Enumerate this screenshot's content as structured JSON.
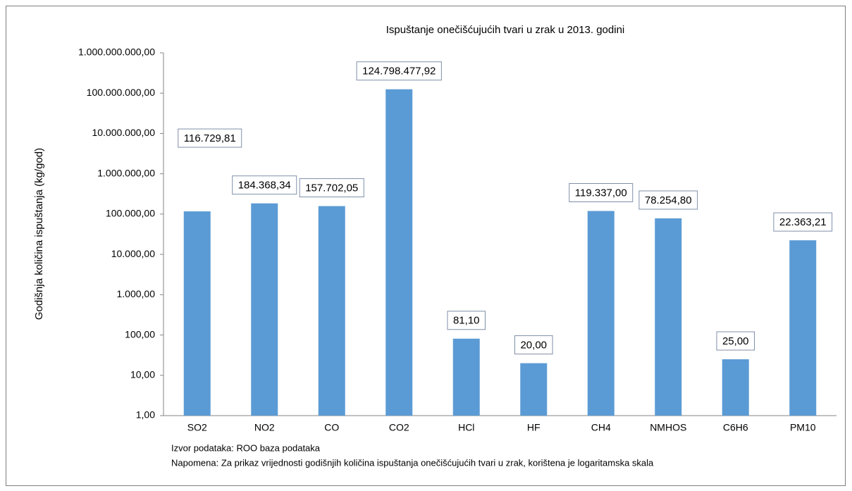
{
  "chart_data": {
    "type": "bar",
    "title": "Ispuštanje onečišćujućih tvari u zrak u 2013. godini",
    "y_label": "Godišnja količina ispuštanja (kg/god)",
    "categories": [
      "SO2",
      "NO2",
      "CO",
      "CO2",
      "HCl",
      "HF",
      "CH4",
      "NMHOS",
      "C6H6",
      "PM10"
    ],
    "values": [
      116729.81,
      184368.34,
      157702.05,
      124798477.92,
      81.1,
      20,
      119337,
      78254.8,
      25,
      22363.21
    ],
    "value_labels": [
      "116.729,81",
      "184.368,34",
      "157.702,05",
      "124.798.477,92",
      "81,10",
      "20,00",
      "119.337,00",
      "78.254,80",
      "25,00",
      "22.363,21"
    ],
    "color": "#5b9bd5",
    "log_scale": true,
    "ylim": [
      1,
      1000000000
    ],
    "yticks": [
      {
        "value": 1,
        "label": "1,00"
      },
      {
        "value": 10,
        "label": "10,00"
      },
      {
        "value": 100,
        "label": "100,00"
      },
      {
        "value": 1000,
        "label": "1.000,00"
      },
      {
        "value": 10000,
        "label": "10.000,00"
      },
      {
        "value": 100000,
        "label": "100.000,00"
      },
      {
        "value": 1000000,
        "label": "1.000.000,00"
      },
      {
        "value": 10000000,
        "label": "10.000.000,00"
      },
      {
        "value": 100000000,
        "label": "100.000.000,00"
      },
      {
        "value": 1000000000,
        "label": "1.000.000.000,00"
      }
    ],
    "grid": false,
    "source": "Izvor podataka: ROO baza podataka",
    "note": "Napomena: Za prikaz vrijednosti godišnjih količina ispuštanja onečišćujućih tvari u zrak, korištena je logaritamska skala"
  }
}
